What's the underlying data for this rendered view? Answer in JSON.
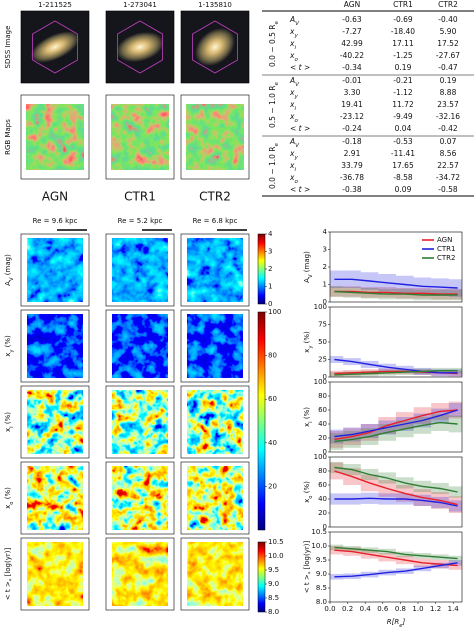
{
  "galaxies": [
    {
      "id": "1-211525",
      "name": "AGN",
      "color": "#e8141d",
      "re": "Re = 9.6 kpc"
    },
    {
      "id": "1-273041",
      "name": "CTR1",
      "color": "#1a1ad6",
      "re": "Re = 5.2 kpc"
    },
    {
      "id": "1-135810",
      "name": "CTR2",
      "color": "#1f8a1f",
      "re": "Re = 6.8 kpc"
    }
  ],
  "row_labels": [
    "SDSS Image",
    "RGB Maps"
  ],
  "table": {
    "columns": [
      "AGN",
      "CTR1",
      "CTR2"
    ],
    "row_labels": [
      [
        "A",
        {
          "sub": "V"
        }
      ],
      [
        "x",
        {
          "sub": "y"
        }
      ],
      [
        "x",
        {
          "sub": "i"
        }
      ],
      [
        "x",
        {
          "sub": "o"
        }
      ],
      [
        "< t >"
      ]
    ],
    "groups": [
      {
        "label": [
          "0.0 − 0.5 R",
          {
            "sub": "e"
          }
        ],
        "values": [
          [
            "-0.63",
            "-0.69",
            "-0.40"
          ],
          [
            "-7.27",
            "-18.40",
            "5.90"
          ],
          [
            "42.99",
            "17.11",
            "17.52"
          ],
          [
            "-40.22",
            "-1.25",
            "-27.67"
          ],
          [
            "-0.34",
            "0.19",
            "-0.47"
          ]
        ]
      },
      {
        "label": [
          "0.5 − 1.0 R",
          {
            "sub": "e"
          }
        ],
        "values": [
          [
            "-0.01",
            "-0.21",
            "0.19"
          ],
          [
            "3.30",
            "-1.12",
            "8.88"
          ],
          [
            "19.41",
            "11.72",
            "23.57"
          ],
          [
            "-23.12",
            "-9.49",
            "-32.16"
          ],
          [
            "-0.24",
            "0.04",
            "-0.42"
          ]
        ]
      },
      {
        "label": [
          "0.0 − 1.0 R",
          {
            "sub": "e"
          }
        ],
        "values": [
          [
            "-0.18",
            "-0.53",
            "0.07"
          ],
          [
            "2.91",
            "-11.41",
            "8.56"
          ],
          [
            "33.79",
            "17.65",
            "22.57"
          ],
          [
            "-36.78",
            "-8.58",
            "-34.72"
          ],
          [
            "-0.38",
            "0.09",
            "-0.58"
          ]
        ]
      }
    ]
  },
  "colorbars": [
    {
      "lim": [
        0,
        4
      ],
      "ticks": [
        0,
        1,
        2,
        3,
        4
      ]
    },
    {
      "lim": [
        0,
        100
      ],
      "ticks": [
        20,
        40,
        60,
        80,
        100
      ]
    },
    {
      "lim": [
        8,
        10.5
      ],
      "ticks": [
        {
          "value": 8,
          "label": "8.0"
        },
        {
          "value": 8.5,
          "label": "8.5"
        },
        {
          "value": 9,
          "label": "9.0"
        },
        {
          "value": 9.5,
          "label": "9.5"
        },
        {
          "value": 10,
          "label": "10.0"
        },
        {
          "value": 10.5,
          "label": "10.5"
        }
      ]
    }
  ],
  "chart_data": [
    {
      "type": "line",
      "ylabel": [
        "A",
        {
          "sub": "V"
        },
        " (mag)"
      ],
      "x": [
        0.05,
        0.25,
        0.45,
        0.65,
        0.85,
        1.05,
        1.25,
        1.45
      ],
      "xlim": [
        0,
        1.5
      ],
      "ylim": [
        0,
        4
      ],
      "yticks": [
        0,
        1,
        2,
        3,
        4
      ],
      "legend": "upper right",
      "series": [
        {
          "name": "AGN",
          "color": "#e8202a",
          "values": [
            0.6,
            0.6,
            0.55,
            0.55,
            0.5,
            0.5,
            0.45,
            0.45
          ],
          "err": [
            0.3,
            0.3,
            0.3,
            0.3,
            0.3,
            0.3,
            0.3,
            0.3
          ]
        },
        {
          "name": "CTR1",
          "color": "#2020e0",
          "values": [
            1.3,
            1.3,
            1.2,
            1.1,
            1.0,
            0.9,
            0.85,
            0.8
          ],
          "err": [
            0.5,
            0.5,
            0.5,
            0.5,
            0.5,
            0.5,
            0.5,
            0.5
          ]
        },
        {
          "name": "CTR2",
          "color": "#2e7d32",
          "values": [
            0.6,
            0.55,
            0.5,
            0.45,
            0.45,
            0.4,
            0.4,
            0.4
          ],
          "err": [
            0.3,
            0.3,
            0.3,
            0.3,
            0.3,
            0.3,
            0.3,
            0.3
          ]
        }
      ]
    },
    {
      "type": "line",
      "ylabel": [
        "x",
        {
          "sub": "y"
        },
        " (%)"
      ],
      "x": [
        0.05,
        0.25,
        0.45,
        0.65,
        0.85,
        1.05,
        1.25,
        1.45
      ],
      "xlim": [
        0,
        1.5
      ],
      "ylim": [
        0,
        100
      ],
      "yticks": [
        0,
        25,
        50,
        75,
        100
      ],
      "series": [
        {
          "color": "#e8202a",
          "values": [
            5,
            6,
            7,
            8,
            8,
            7,
            6,
            5
          ],
          "err": [
            4,
            4,
            4,
            4,
            4,
            4,
            4,
            4
          ]
        },
        {
          "color": "#2020e0",
          "values": [
            25,
            22,
            18,
            14,
            11,
            8,
            6,
            6
          ],
          "err": [
            5,
            5,
            5,
            5,
            5,
            5,
            5,
            5
          ]
        },
        {
          "color": "#2e7d32",
          "values": [
            3,
            4,
            5,
            6,
            7,
            8,
            9,
            9
          ],
          "err": [
            4,
            4,
            4,
            4,
            4,
            4,
            4,
            4
          ]
        }
      ]
    },
    {
      "type": "line",
      "ylabel": [
        "x",
        {
          "sub": "i"
        },
        " (%)"
      ],
      "x": [
        0.05,
        0.25,
        0.45,
        0.65,
        0.85,
        1.05,
        1.25,
        1.45
      ],
      "xlim": [
        0,
        1.5
      ],
      "ylim": [
        0,
        100
      ],
      "yticks": [
        0,
        20,
        40,
        60,
        80,
        100
      ],
      "series": [
        {
          "color": "#e8202a",
          "values": [
            18,
            22,
            28,
            38,
            45,
            52,
            58,
            60
          ],
          "err": [
            12,
            12,
            12,
            12,
            12,
            12,
            12,
            12
          ]
        },
        {
          "color": "#2020e0",
          "values": [
            22,
            25,
            30,
            35,
            40,
            45,
            52,
            60
          ],
          "err": [
            10,
            10,
            10,
            10,
            10,
            10,
            10,
            10
          ]
        },
        {
          "color": "#2e7d32",
          "values": [
            15,
            18,
            22,
            28,
            33,
            38,
            42,
            40
          ],
          "err": [
            12,
            12,
            12,
            12,
            12,
            12,
            12,
            12
          ]
        }
      ]
    },
    {
      "type": "line",
      "ylabel": [
        "x",
        {
          "sub": "o"
        },
        " (%)"
      ],
      "x": [
        0.05,
        0.25,
        0.45,
        0.65,
        0.85,
        1.05,
        1.25,
        1.45
      ],
      "xlim": [
        0,
        1.5
      ],
      "ylim": [
        0,
        100
      ],
      "yticks": [
        0,
        20,
        40,
        60,
        80,
        100
      ],
      "series": [
        {
          "color": "#e8202a",
          "values": [
            80,
            72,
            63,
            55,
            48,
            42,
            38,
            32
          ],
          "err": [
            12,
            12,
            12,
            12,
            12,
            12,
            12,
            12
          ]
        },
        {
          "color": "#2020e0",
          "values": [
            40,
            40,
            41,
            40,
            40,
            38,
            35,
            30
          ],
          "err": [
            8,
            8,
            8,
            8,
            8,
            8,
            8,
            8
          ]
        },
        {
          "color": "#2e7d32",
          "values": [
            85,
            82,
            75,
            70,
            63,
            58,
            55,
            50
          ],
          "err": [
            8,
            8,
            8,
            8,
            8,
            8,
            8,
            8
          ]
        }
      ]
    },
    {
      "type": "line",
      "ylabel": [
        "< t >",
        {
          "sub": "*"
        },
        " [log(yr)]"
      ],
      "xlabel": [
        "R[R",
        {
          "sub": "e"
        },
        "]"
      ],
      "x": [
        0.05,
        0.25,
        0.45,
        0.65,
        0.85,
        1.05,
        1.25,
        1.45
      ],
      "xlim": [
        0,
        1.5
      ],
      "ylim": [
        8,
        10.5
      ],
      "xticks": [
        {
          "value": 0,
          "label": "0.0"
        },
        {
          "value": 0.2,
          "label": "0.2"
        },
        {
          "value": 0.4,
          "label": "0.4"
        },
        {
          "value": 0.6,
          "label": "0.6"
        },
        {
          "value": 0.8,
          "label": "0.8"
        },
        {
          "value": 1,
          "label": "1.0"
        },
        {
          "value": 1.2,
          "label": "1.2"
        },
        {
          "value": 1.4,
          "label": "1.4"
        }
      ],
      "yticks": [
        {
          "value": 8,
          "label": "8.0"
        },
        {
          "value": 8.5,
          "label": "8.5"
        },
        {
          "value": 9,
          "label": "9.0"
        },
        {
          "value": 9.5,
          "label": "9.5"
        },
        {
          "value": 10,
          "label": "10.0"
        },
        {
          "value": 10.5,
          "label": "10.5"
        }
      ],
      "series": [
        {
          "color": "#e8202a",
          "values": [
            9.85,
            9.8,
            9.7,
            9.6,
            9.5,
            9.4,
            9.35,
            9.3
          ],
          "err": [
            0.15,
            0.15,
            0.15,
            0.15,
            0.15,
            0.15,
            0.15,
            0.15
          ]
        },
        {
          "color": "#2020e0",
          "values": [
            8.9,
            8.92,
            8.98,
            9.05,
            9.1,
            9.2,
            9.3,
            9.4
          ],
          "err": [
            0.1,
            0.1,
            0.1,
            0.1,
            0.1,
            0.1,
            0.1,
            0.1
          ]
        },
        {
          "color": "#2e7d32",
          "values": [
            9.95,
            9.9,
            9.85,
            9.8,
            9.7,
            9.65,
            9.6,
            9.55
          ],
          "err": [
            0.1,
            0.1,
            0.1,
            0.1,
            0.1,
            0.1,
            0.1,
            0.1
          ]
        }
      ]
    }
  ]
}
